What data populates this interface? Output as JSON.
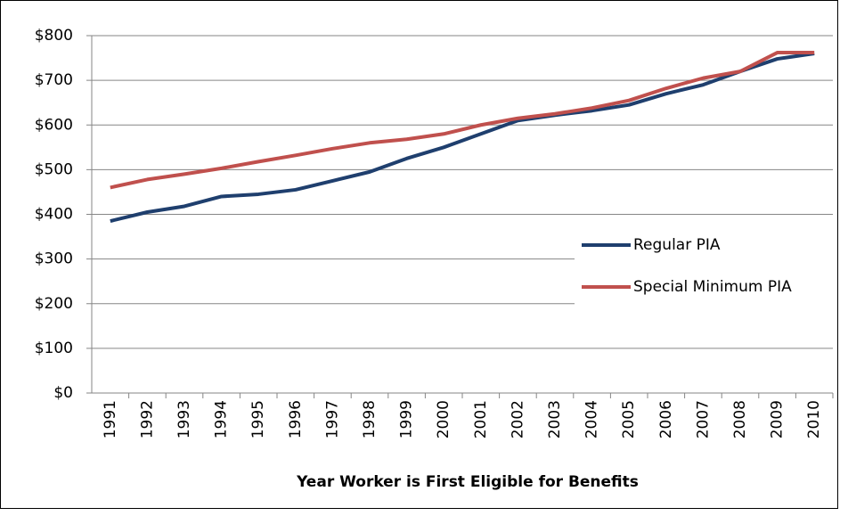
{
  "chart_data": {
    "type": "line",
    "x_label": "Year Worker is First Eligible for Benefits",
    "categories": [
      "1991",
      "1992",
      "1993",
      "1994",
      "1995",
      "1996",
      "1997",
      "1998",
      "1999",
      "2000",
      "2001",
      "2002",
      "2003",
      "2004",
      "2005",
      "2006",
      "2007",
      "2008",
      "2009",
      "2010"
    ],
    "series": [
      {
        "name": "Regular PIA",
        "color": "#1f3f6e",
        "values": [
          385,
          405,
          418,
          440,
          445,
          455,
          475,
          495,
          525,
          550,
          580,
          610,
          622,
          632,
          645,
          670,
          690,
          720,
          748,
          760
        ]
      },
      {
        "name": "Special Minimum PIA",
        "color": "#c0504d",
        "values": [
          460,
          478,
          490,
          503,
          518,
          532,
          547,
          560,
          568,
          580,
          600,
          615,
          625,
          638,
          655,
          682,
          705,
          720,
          762,
          762
        ]
      }
    ],
    "ylim": [
      0,
      800
    ],
    "yticks": [
      {
        "value": 0,
        "label": "$0"
      },
      {
        "value": 100,
        "label": "$100"
      },
      {
        "value": 200,
        "label": "$200"
      },
      {
        "value": 300,
        "label": "$300"
      },
      {
        "value": 400,
        "label": "$400"
      },
      {
        "value": 500,
        "label": "$500"
      },
      {
        "value": 600,
        "label": "$600"
      },
      {
        "value": 700,
        "label": "$700"
      },
      {
        "value": 800,
        "label": "$800"
      }
    ],
    "grid": true,
    "legend_position": "right"
  }
}
